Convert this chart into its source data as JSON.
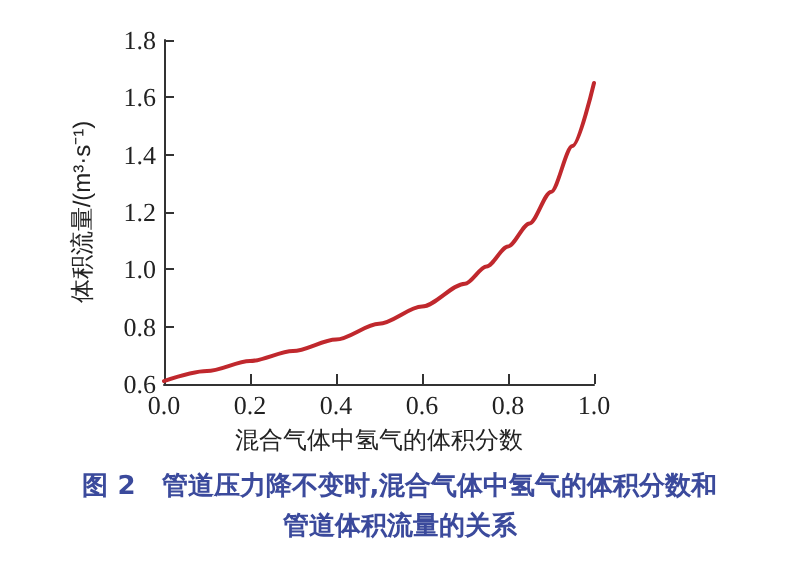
{
  "chart_data": {
    "type": "line",
    "xlabel": "混合气体中氢气的体积分数",
    "ylabel": "体积流量/(m³·s⁻¹)",
    "annotations": [
      "图 2　管道压力降不变时,混合气体中氢气的体积分数和管道体积流量的关系"
    ],
    "x": [
      0,
      0.1,
      0.2,
      0.3,
      0.4,
      0.5,
      0.6,
      0.7,
      0.75,
      0.8,
      0.85,
      0.9,
      0.95,
      1.0
    ],
    "series": [
      {
        "color": "#c0282d",
        "values": [
          0.61,
          0.645,
          0.68,
          0.715,
          0.755,
          0.81,
          0.87,
          0.95,
          1.01,
          1.08,
          1.16,
          1.27,
          1.43,
          1.65
        ]
      }
    ],
    "xlim": [
      0,
      1.0
    ],
    "xticks": [
      {
        "value": 0,
        "label": "0.0"
      },
      0.2,
      0.4,
      0.6,
      0.8,
      {
        "value": 1.0,
        "label": "1.0"
      }
    ],
    "ylim": [
      0.6,
      1.8
    ],
    "yticks": [
      0.6,
      0.8,
      {
        "value": 1.0,
        "label": "1.0"
      },
      1.2,
      1.4,
      1.6,
      1.8
    ],
    "grid": false,
    "marker": "none",
    "line_style": "solid"
  }
}
